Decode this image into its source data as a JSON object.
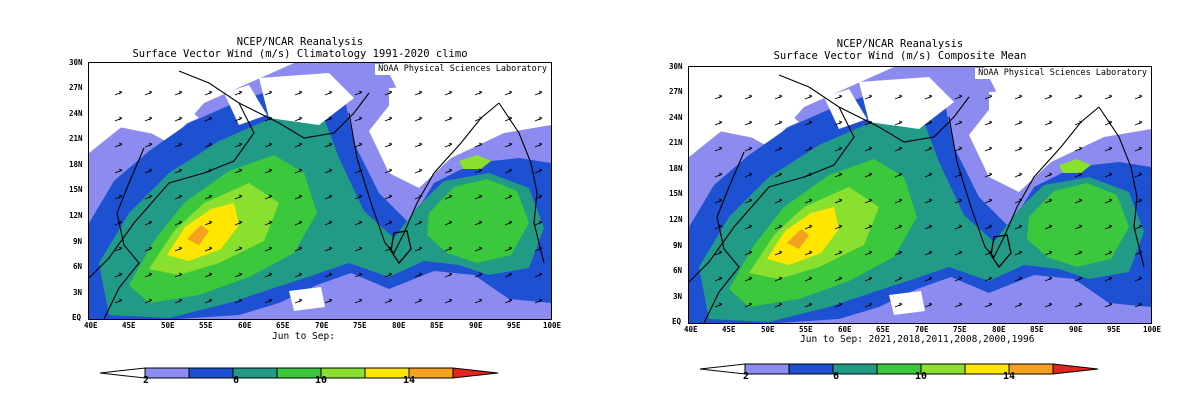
{
  "colors": {
    "scale": [
      "#ffffff",
      "#8c8cf0",
      "#1e50d2",
      "#219a86",
      "#3cc83c",
      "#8ae02e",
      "#ffe600",
      "#f5a020",
      "#e6241e"
    ],
    "land_outline": "#000000",
    "arrow": "#000000"
  },
  "colorbar": {
    "labels": [
      "2",
      "6",
      "10",
      "14"
    ],
    "bins_ms": [
      [
        null,
        2
      ],
      [
        2,
        4
      ],
      [
        4,
        6
      ],
      [
        6,
        8
      ],
      [
        8,
        10
      ],
      [
        10,
        12
      ],
      [
        12,
        14
      ],
      [
        14,
        16
      ],
      [
        16,
        null
      ]
    ]
  },
  "axes": {
    "lat_labels": [
      "30N",
      "27N",
      "24N",
      "21N",
      "18N",
      "15N",
      "12N",
      "9N",
      "6N",
      "3N",
      "EQ"
    ],
    "lon_labels": [
      "40E",
      "45E",
      "50E",
      "55E",
      "60E",
      "65E",
      "70E",
      "75E",
      "80E",
      "85E",
      "90E",
      "95E",
      "100E"
    ],
    "lat_range": [
      0,
      30
    ],
    "lon_range": [
      40,
      100
    ]
  },
  "panels": [
    {
      "title_line1": "NCEP/NCAR Reanalysis",
      "title_line2": "Surface Vector Wind (m/s) Climatology 1991-2020 climo",
      "credit": "NOAA Physical Sciences Laboratory",
      "period": "Jun to Sep:"
    },
    {
      "title_line1": "NCEP/NCAR Reanalysis",
      "title_line2": "Surface Vector Wind (m/s) Composite Mean",
      "credit": "NOAA Physical Sciences Laboratory",
      "period": "Jun to Sep: 2021,2018,2011,2008,2000,1996"
    }
  ]
}
